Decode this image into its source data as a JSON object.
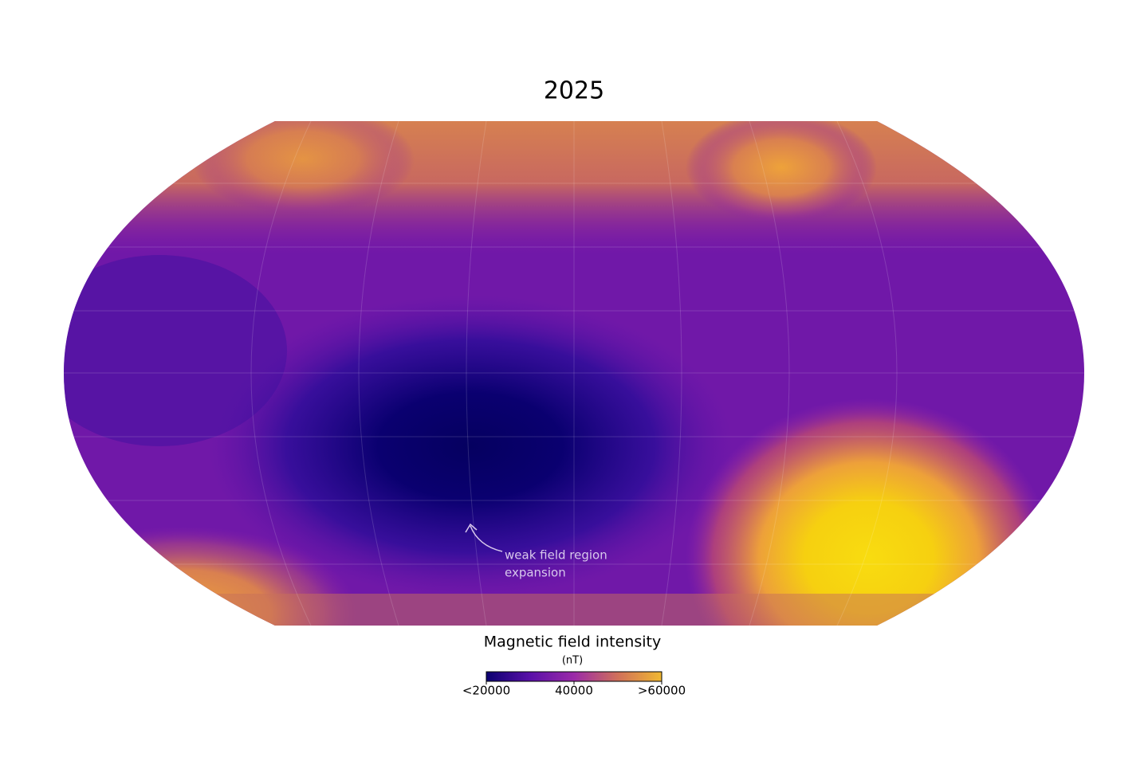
{
  "title": "2025",
  "annotation": {
    "lines": [
      "weak field region",
      "expansion"
    ]
  },
  "colorbar": {
    "title": "Magnetic field intensity",
    "unit": "(nT)",
    "range": [
      20000,
      60000
    ],
    "ticks": [
      {
        "value": 20000,
        "label": "<20000"
      },
      40000,
      {
        "value": 60000,
        "label": ">60000"
      }
    ],
    "colors": [
      "#0b0070",
      "#5a10a8",
      "#9b2aa8",
      "#d0705a",
      "#f0b832"
    ]
  }
}
